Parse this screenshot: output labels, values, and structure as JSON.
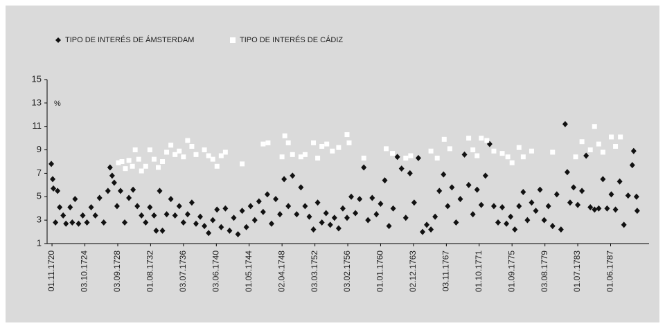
{
  "chart_data": {
    "type": "scatter",
    "y_label": "%",
    "xlim": [
      "01.04.1720",
      "01.01.1792"
    ],
    "xticks": [
      "01.11.1720",
      "03.10.1724",
      "03.09.1728",
      "01.08.1732",
      "03.07.1736",
      "03.06.1740",
      "01.05.1744",
      "02.04.1748",
      "03.03.1752",
      "03.02.1756",
      "01.01.1760",
      "02.12.1763",
      "03.11.1767",
      "01.10.1771",
      "01.09.1775",
      "03.08.1779",
      "01.07.1783",
      "01.06.1787"
    ],
    "ylim": [
      1,
      15
    ],
    "yticks": [
      1,
      3,
      5,
      7,
      9,
      11,
      13,
      15
    ],
    "grid": false,
    "series": [
      {
        "name": "TIPO DE INTERÉS DE ÁMSTERDAM",
        "color": "#111111",
        "marker": "diamond",
        "x": [
          "01.10.1720",
          "01.12.1720",
          "01.01.1721",
          "01.04.1721",
          "01.07.1721",
          "01.10.1721",
          "01.03.1722",
          "01.07.1722",
          "01.01.1723",
          "01.04.1723",
          "01.08.1723",
          "01.01.1724",
          "01.07.1724",
          "01.01.1725",
          "01.07.1725",
          "01.01.1726",
          "01.07.1726",
          "01.01.1727",
          "01.07.1727",
          "01.10.1727",
          "01.01.1728",
          "01.04.1728",
          "01.08.1728",
          "01.01.1729",
          "01.07.1729",
          "01.01.1730",
          "01.07.1730",
          "01.01.1731",
          "01.07.1731",
          "01.01.1732",
          "01.07.1732",
          "01.01.1733",
          "01.04.1733",
          "01.09.1733",
          "01.01.1734",
          "01.07.1734",
          "01.01.1735",
          "01.07.1735",
          "01.01.1736",
          "01.07.1736",
          "01.01.1737",
          "01.07.1737",
          "01.01.1738",
          "01.07.1738",
          "01.01.1739",
          "01.07.1739",
          "01.01.1740",
          "01.07.1740",
          "01.01.1741",
          "01.07.1741",
          "01.01.1742",
          "01.07.1742",
          "01.01.1743",
          "01.07.1743",
          "01.01.1744",
          "01.07.1744",
          "01.01.1745",
          "01.07.1745",
          "01.01.1746",
          "01.07.1746",
          "01.01.1747",
          "01.07.1747",
          "01.01.1748",
          "01.07.1748",
          "01.01.1749",
          "01.07.1749",
          "01.01.1750",
          "01.07.1750",
          "01.01.1751",
          "01.07.1751",
          "01.01.1752",
          "01.07.1752",
          "01.01.1753",
          "01.07.1753",
          "01.01.1754",
          "01.07.1754",
          "01.01.1755",
          "01.07.1755",
          "01.01.1756",
          "01.07.1756",
          "01.01.1757",
          "01.07.1757",
          "01.01.1758",
          "01.07.1758",
          "01.01.1759",
          "01.07.1759",
          "01.01.1760",
          "01.07.1760",
          "01.01.1761",
          "01.07.1761",
          "01.01.1762",
          "01.07.1762",
          "01.01.1763",
          "01.07.1763",
          "01.01.1764",
          "01.07.1764",
          "01.01.1765",
          "01.07.1765",
          "01.01.1766",
          "01.07.1766",
          "01.01.1767",
          "01.07.1767",
          "01.01.1768",
          "01.07.1768",
          "01.01.1769",
          "01.07.1769",
          "01.01.1770",
          "01.07.1770",
          "01.01.1771",
          "01.07.1771",
          "01.01.1772",
          "01.07.1772",
          "01.01.1773",
          "01.07.1773",
          "01.01.1774",
          "01.07.1774",
          "01.01.1775",
          "01.07.1775",
          "01.01.1776",
          "01.07.1776",
          "01.01.1777",
          "01.07.1777",
          "01.01.1778",
          "01.07.1778",
          "01.01.1779",
          "01.07.1779",
          "01.01.1780",
          "01.07.1780",
          "01.01.1781",
          "01.07.1781",
          "01.01.1782",
          "01.04.1782",
          "01.08.1782",
          "01.01.1783",
          "01.07.1783",
          "01.01.1784",
          "01.07.1784",
          "01.01.1785",
          "01.07.1785",
          "01.01.1786",
          "01.07.1786",
          "01.01.1787",
          "01.07.1787",
          "01.01.1788",
          "01.07.1788",
          "01.01.1789",
          "01.07.1789",
          "01.01.1790",
          "01.03.1790",
          "01.07.1790",
          "01.08.1790"
        ],
        "values": [
          7.8,
          6.5,
          5.7,
          2.8,
          5.5,
          4.1,
          3.4,
          2.7,
          4.1,
          2.8,
          4.8,
          2.7,
          3.4,
          2.8,
          4.1,
          3.4,
          4.9,
          2.8,
          5.5,
          7.5,
          6.8,
          6.2,
          4.2,
          5.5,
          2.8,
          4.9,
          5.6,
          4.2,
          3.4,
          2.8,
          4.1,
          3.4,
          2.1,
          5.5,
          2.1,
          3.5,
          4.8,
          3.4,
          4.2,
          2.8,
          3.5,
          4.5,
          2.7,
          3.3,
          2.5,
          1.9,
          3.0,
          3.9,
          2.4,
          4.0,
          2.1,
          3.2,
          1.8,
          3.8,
          2.4,
          4.2,
          3.0,
          4.6,
          3.7,
          5.2,
          2.7,
          4.8,
          3.5,
          6.5,
          4.2,
          6.8,
          3.5,
          5.8,
          4.2,
          3.3,
          2.2,
          4.5,
          2.8,
          3.6,
          2.6,
          3.2,
          2.3,
          4.0,
          3.2,
          5.0,
          3.6,
          4.8,
          7.5,
          3.0,
          4.9,
          3.5,
          4.4,
          6.4,
          2.5,
          4.0,
          8.4,
          7.4,
          3.2,
          7.0,
          4.5,
          8.3,
          2.0,
          2.6,
          2.2,
          3.3,
          5.5,
          6.9,
          4.2,
          5.8,
          2.8,
          4.8,
          8.6,
          6.0,
          3.5,
          5.6,
          4.3,
          6.8,
          9.5,
          4.2,
          2.8,
          4.1,
          2.7,
          3.3,
          2.2,
          4.2,
          5.4,
          3.0,
          4.5,
          3.8,
          5.6,
          3.0,
          4.2,
          2.5,
          5.2,
          2.2,
          11.2,
          7.1,
          4.5,
          5.8,
          4.3,
          5.5,
          8.5,
          4.1,
          3.9,
          4.0,
          6.5,
          4.0,
          5.2,
          3.9,
          6.3,
          2.6,
          5.1,
          7.7,
          8.9,
          5.0,
          3.8
        ]
      },
      {
        "name": "TIPO DE INTERÉS DE CÁDIZ",
        "color": "#ffffff",
        "marker": "square",
        "x": [
          "01.10.1728",
          "01.03.1729",
          "01.08.1729",
          "01.01.1730",
          "01.06.1730",
          "01.10.1730",
          "01.03.1731",
          "01.07.1731",
          "01.01.1732",
          "01.07.1732",
          "01.01.1733",
          "01.07.1733",
          "01.01.1734",
          "01.07.1734",
          "01.01.1735",
          "01.07.1735",
          "01.01.1736",
          "01.07.1736",
          "01.01.1737",
          "01.07.1737",
          "01.01.1738",
          "01.01.1739",
          "01.07.1739",
          "01.01.1740",
          "01.07.1740",
          "01.01.1741",
          "01.07.1741",
          "01.07.1743",
          "01.01.1746",
          "01.08.1746",
          "01.04.1748",
          "01.08.1748",
          "01.01.1749",
          "01.07.1749",
          "01.07.1750",
          "01.01.1751",
          "01.01.1752",
          "01.07.1752",
          "01.01.1753",
          "01.08.1753",
          "01.04.1754",
          "01.01.1755",
          "01.01.1756",
          "01.04.1756",
          "01.01.1758",
          "01.09.1760",
          "01.06.1761",
          "01.01.1763",
          "01.08.1763",
          "01.01.1766",
          "01.10.1766",
          "01.08.1767",
          "01.04.1768",
          "01.07.1770",
          "01.01.1771",
          "01.07.1771",
          "01.01.1772",
          "01.09.1772",
          "01.07.1773",
          "01.07.1774",
          "01.03.1775",
          "01.09.1775",
          "01.07.1776",
          "01.01.1777",
          "01.01.1778",
          "01.07.1780",
          "01.04.1783",
          "01.01.1784",
          "01.01.1785",
          "01.07.1785",
          "01.01.1786",
          "01.07.1786",
          "01.07.1787",
          "01.01.1788",
          "01.08.1788"
        ],
        "values": [
          7.9,
          8.0,
          7.4,
          8.1,
          7.6,
          9.0,
          8.2,
          7.2,
          7.6,
          9.0,
          8.2,
          7.5,
          8.0,
          8.8,
          9.4,
          8.6,
          8.9,
          8.4,
          9.8,
          9.3,
          8.6,
          9.0,
          8.5,
          8.2,
          7.6,
          8.5,
          8.8,
          7.8,
          9.5,
          9.6,
          8.4,
          10.2,
          9.6,
          8.6,
          8.4,
          8.6,
          9.6,
          8.3,
          9.3,
          9.5,
          8.9,
          9.2,
          10.3,
          9.6,
          8.3,
          9.1,
          8.7,
          8.3,
          8.5,
          8.9,
          8.3,
          9.9,
          9.1,
          10.0,
          9.0,
          8.5,
          10.0,
          9.8,
          8.9,
          8.7,
          8.4,
          7.9,
          9.2,
          8.4,
          8.9,
          8.8,
          8.4,
          9.7,
          9.0,
          11.0,
          9.5,
          8.8,
          10.1,
          9.3,
          10.1
        ]
      }
    ]
  }
}
